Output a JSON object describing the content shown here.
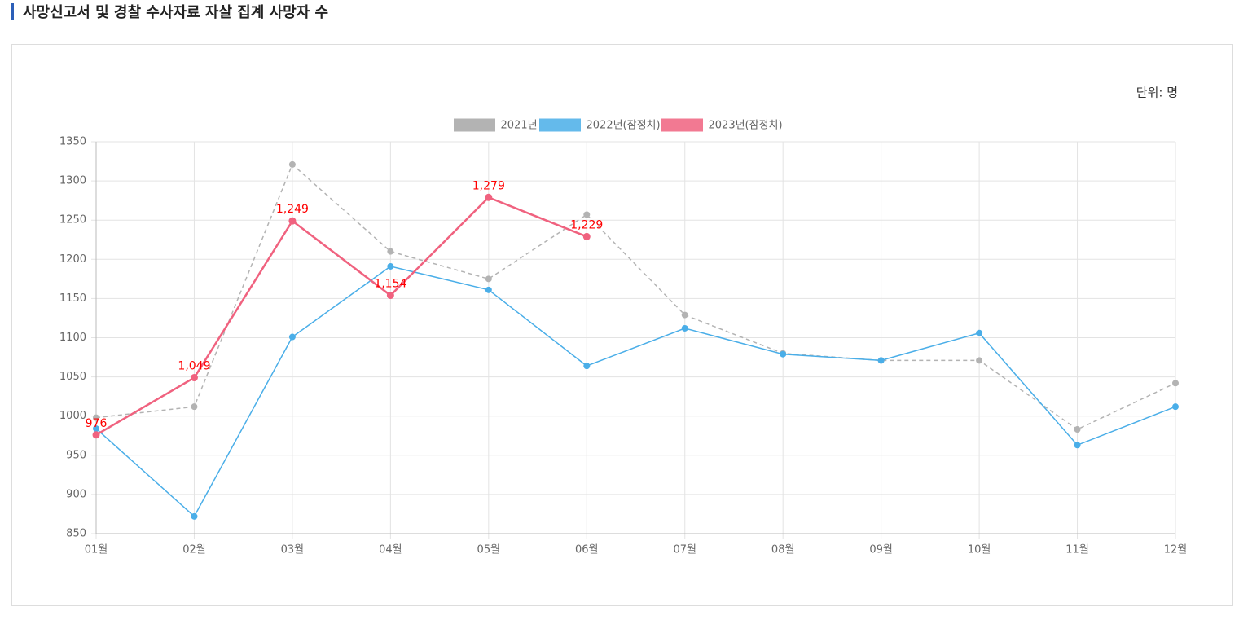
{
  "chart_data": {
    "type": "line",
    "title": "사망신고서 및 경찰 수사자료 자살 집계 사망자 수",
    "unit_label": "단위: 명",
    "categories": [
      "01월",
      "02월",
      "03월",
      "04월",
      "05월",
      "06월",
      "07월",
      "08월",
      "09월",
      "10월",
      "11월",
      "12월"
    ],
    "series": [
      {
        "name": "2021년",
        "color": "#b3b3b3",
        "line_style": "dashed",
        "values": [
          998,
          1012,
          1321,
          1210,
          1175,
          1257,
          1129,
          1080,
          1071,
          1071,
          983,
          1042
        ]
      },
      {
        "name": "2022년(잠정치)",
        "color": "#4aaee8",
        "line_style": "solid",
        "values": [
          984,
          872,
          1101,
          1191,
          1161,
          1064,
          1112,
          1079,
          1071,
          1106,
          963,
          1012
        ]
      },
      {
        "name": "2023년(잠정치)",
        "color": "#f0627f",
        "line_style": "solid",
        "label_color": "#ff0000",
        "values": [
          976,
          1049,
          1249,
          1154,
          1279,
          1229,
          null,
          null,
          null,
          null,
          null,
          null
        ],
        "value_labels": [
          "976",
          "1,049",
          "1,249",
          "1,154",
          "1,279",
          "1,229",
          null,
          null,
          null,
          null,
          null,
          null
        ]
      }
    ],
    "ylim": [
      850,
      1350
    ],
    "yticks": [
      850,
      900,
      950,
      1000,
      1050,
      1100,
      1150,
      1200,
      1250,
      1300,
      1350
    ],
    "grid": true,
    "legend": "top"
  }
}
